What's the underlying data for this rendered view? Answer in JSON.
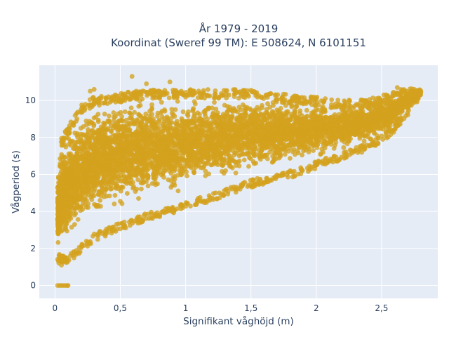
{
  "chart_data": {
    "type": "scatter",
    "title_line1": "År 1979 - 2019",
    "title_line2": "Koordinat (Sweref 99 TM): E 508624, N 6101151",
    "xlabel": "Signifikant våghöjd (m)",
    "ylabel": "Vågperiod (s)",
    "xlim": [
      -0.12,
      2.93
    ],
    "ylim": [
      -0.7,
      11.9
    ],
    "x_ticks": [
      0,
      0.5,
      1,
      1.5,
      2,
      2.5
    ],
    "x_tick_labels": [
      "0",
      "0,5",
      "1",
      "1,5",
      "2",
      "2,5"
    ],
    "y_ticks": [
      0,
      2,
      4,
      6,
      8,
      10
    ],
    "y_tick_labels": [
      "0",
      "2",
      "4",
      "6",
      "8",
      "10"
    ],
    "grid": true,
    "plot_background": "#e5ecf6",
    "marker_color": "#d4a11e",
    "marker_opacity": 0.78,
    "density_envelope": {
      "h": [
        0.03,
        0.05,
        0.1,
        0.2,
        0.3,
        0.5,
        0.7,
        1.0,
        1.3,
        1.5,
        1.8,
        2.0,
        2.2,
        2.4,
        2.5,
        2.6,
        2.7,
        2.8
      ],
      "lower": [
        1.3,
        1.2,
        1.2,
        1.8,
        2.4,
        3.0,
        3.5,
        4.1,
        4.8,
        5.3,
        5.8,
        6.3,
        6.8,
        7.3,
        7.7,
        8.3,
        9.2,
        10.2
      ],
      "upper": [
        6.0,
        8.0,
        8.6,
        9.8,
        10.2,
        10.4,
        10.6,
        10.6,
        10.6,
        10.6,
        10.3,
        10.2,
        10.0,
        10.1,
        10.3,
        10.5,
        10.7,
        10.6
      ]
    },
    "zero_period_points": {
      "x": [
        0.02,
        0.035,
        0.05,
        0.065,
        0.08,
        0.095,
        0.1
      ],
      "y": [
        0,
        0,
        0,
        0,
        0,
        0,
        0
      ]
    },
    "notable_points": {
      "x": [
        0.59,
        0.88,
        0.3,
        0.27,
        0.7,
        2.62,
        2.75,
        2.8,
        0.03,
        0.05
      ],
      "y": [
        11.3,
        11.0,
        10.6,
        10.5,
        10.9,
        10.7,
        10.6,
        10.5,
        1.2,
        1.1
      ]
    }
  }
}
